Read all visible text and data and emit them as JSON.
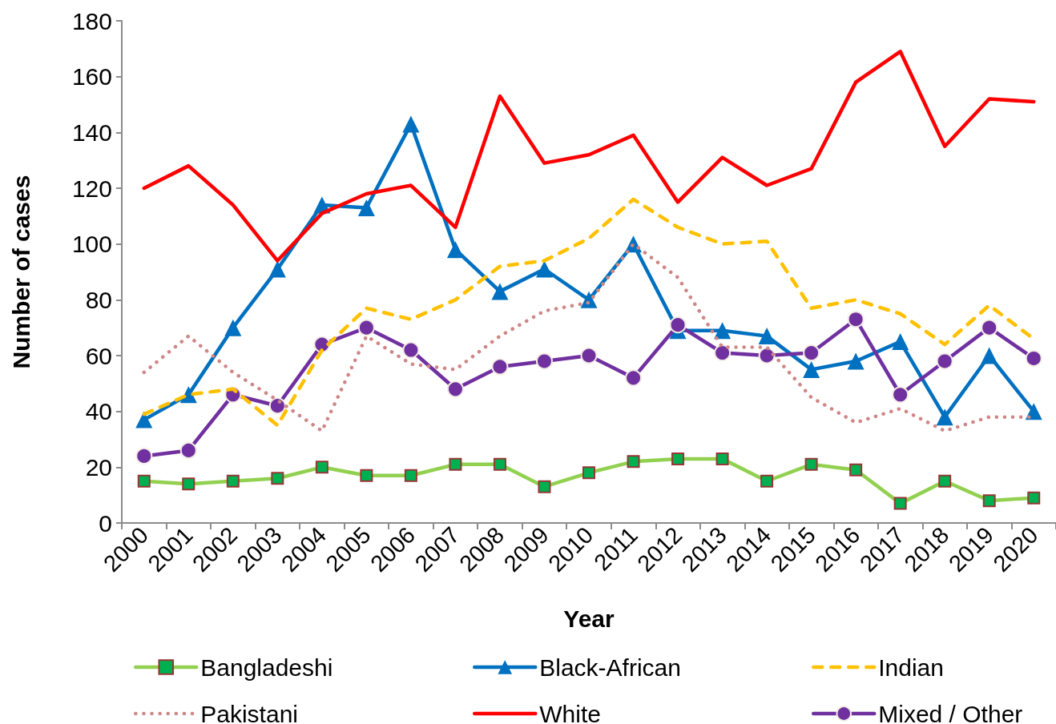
{
  "chart_data": {
    "type": "line",
    "xlabel": "Year",
    "ylabel": "Number of cases",
    "categories": [
      "2000",
      "2001",
      "2002",
      "2003",
      "2004",
      "2005",
      "2006",
      "2007",
      "2008",
      "2009",
      "2010",
      "2011",
      "2012",
      "2013",
      "2014",
      "2015",
      "2016",
      "2017",
      "2018",
      "2019",
      "2020"
    ],
    "series": [
      {
        "name": "Bangladeshi",
        "color": "#92d050",
        "colors": [
          "#00b050",
          "#00b050",
          "#00b050",
          "#00b050",
          "#00b050",
          "#00b050",
          "#00b050",
          "#00b050",
          "#00b050",
          "#00b050",
          "#00b050",
          "#00b050",
          "#00b050",
          "#00b050",
          "#00b050",
          "#00b050",
          "#00b050",
          "#00b050",
          "#00b050",
          "#00b050",
          "#00b050"
        ],
        "marker": "square",
        "line_style": "solid",
        "values": [
          15,
          14,
          15,
          16,
          20,
          17,
          17,
          21,
          21,
          13,
          18,
          22,
          23,
          23,
          15,
          21,
          19,
          7,
          15,
          8,
          9
        ]
      },
      {
        "name": "Black-African",
        "color": "#0070c0",
        "marker": "triangle",
        "line_style": "solid",
        "values": [
          37,
          46,
          70,
          91,
          114,
          113,
          143,
          98,
          83,
          91,
          80,
          100,
          69,
          69,
          67,
          55,
          58,
          65,
          38,
          60,
          40
        ]
      },
      {
        "name": "Indian",
        "color": "#ffc000",
        "marker": "none",
        "line_style": "dashed",
        "values": [
          39,
          46,
          48,
          35,
          62,
          77,
          73,
          80,
          92,
          94,
          102,
          116,
          106,
          100,
          101,
          77,
          80,
          75,
          64,
          78,
          66
        ]
      },
      {
        "name": "Pakistani",
        "color": "#cf8686",
        "marker": "none",
        "line_style": "dotted",
        "values": [
          54,
          67,
          54,
          44,
          33,
          67,
          57,
          55,
          67,
          76,
          79,
          100,
          88,
          63,
          63,
          45,
          36,
          41,
          33,
          38,
          38
        ]
      },
      {
        "name": "White",
        "color": "#ff0000",
        "marker": "none",
        "line_style": "solid",
        "values": [
          120,
          128,
          114,
          94,
          111,
          118,
          121,
          106,
          153,
          129,
          132,
          139,
          115,
          131,
          121,
          127,
          158,
          169,
          135,
          152,
          151
        ]
      },
      {
        "name": "Mixed / Other",
        "color": "#7030a0",
        "marker": "circle",
        "line_style": "solid",
        "values": [
          24,
          26,
          46,
          42,
          64,
          70,
          62,
          48,
          56,
          58,
          60,
          52,
          71,
          61,
          60,
          61,
          73,
          46,
          58,
          70,
          59
        ]
      }
    ],
    "ylim": [
      0,
      180
    ],
    "yticks": [
      0,
      20,
      40,
      60,
      80,
      100,
      120,
      140,
      160,
      180
    ],
    "legend": "bottom"
  }
}
